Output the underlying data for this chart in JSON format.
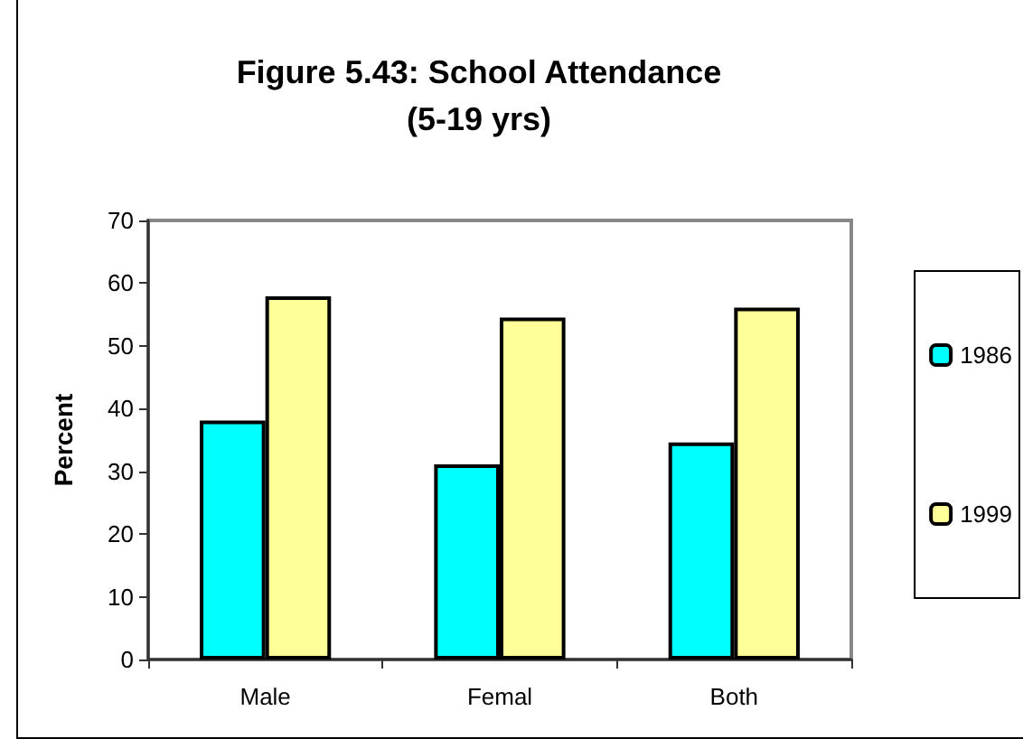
{
  "chart_data": {
    "type": "bar",
    "title": "Figure 5.43: School Attendance\n(5-19 yrs)",
    "ylabel": "Percent",
    "categories": [
      "Male",
      "Femal",
      "Both"
    ],
    "series": [
      {
        "name": "1986",
        "color": "#00ffff",
        "values": [
          38.1,
          31.1,
          34.6
        ]
      },
      {
        "name": "1999",
        "color": "#ffff99",
        "values": [
          57.9,
          54.5,
          56.1
        ]
      }
    ],
    "ylim": [
      0,
      70
    ],
    "yticks": [
      0,
      10,
      20,
      30,
      40,
      50,
      60,
      70
    ],
    "grid": false,
    "legend": "right"
  }
}
